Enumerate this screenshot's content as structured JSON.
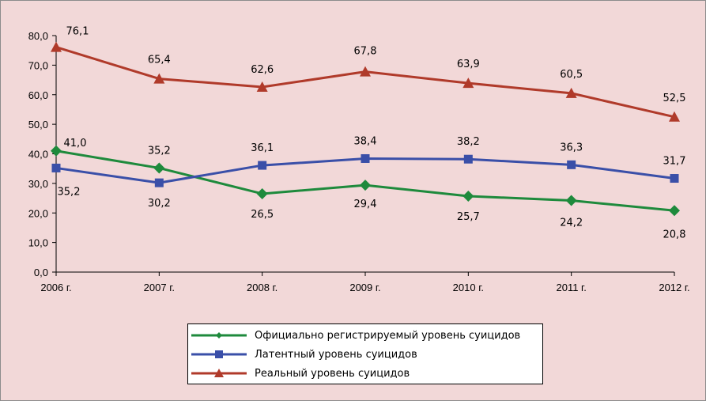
{
  "chart_data": {
    "type": "line",
    "categories": [
      "2006 г.",
      "2007 г.",
      "2008 г.",
      "2009 г.",
      "2010 г.",
      "2011 г.",
      "2012 г."
    ],
    "ylim": [
      0,
      80
    ],
    "yticks": [
      "0,0",
      "10,0",
      "20,0",
      "30,0",
      "40,0",
      "50,0",
      "60,0",
      "70,0",
      "80,0"
    ],
    "grid": false,
    "legend_position": "bottom",
    "series": [
      {
        "name": "Официально регистрируемый уровень суицидов",
        "color": "#1e8a3c",
        "marker": "diamond",
        "values": [
          41.0,
          35.2,
          26.5,
          29.4,
          25.7,
          24.2,
          20.8
        ],
        "labels": [
          "41,0",
          "35,2",
          "26,5",
          "29,4",
          "25,7",
          "24,2",
          "20,8"
        ]
      },
      {
        "name": "Латентный уровень суицидов",
        "color": "#3a4fa8",
        "marker": "square",
        "values": [
          35.2,
          30.2,
          36.1,
          38.4,
          38.2,
          36.3,
          31.7
        ],
        "labels": [
          "35,2",
          "30,2",
          "36,1",
          "38,4",
          "38,2",
          "36,3",
          "31,7"
        ]
      },
      {
        "name": "Реальный уровень суицидов",
        "color": "#b03a2a",
        "marker": "triangle",
        "values": [
          76.1,
          65.4,
          62.6,
          67.8,
          63.9,
          60.5,
          52.5
        ],
        "labels": [
          "76,1",
          "65,4",
          "62,6",
          "67,8",
          "63,9",
          "60,5",
          "52,5"
        ]
      }
    ]
  }
}
